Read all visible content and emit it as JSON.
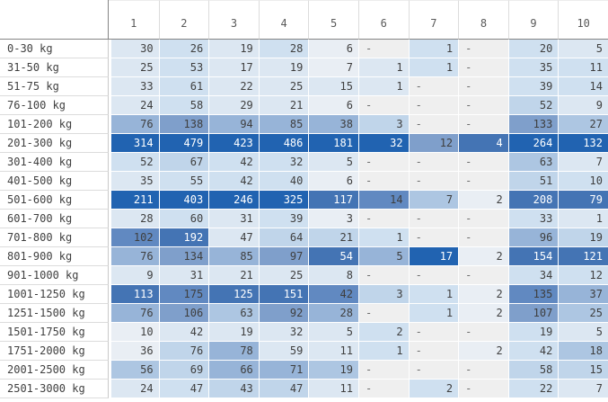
{
  "chart_data": {
    "type": "heatmap",
    "title": "",
    "legend": "none",
    "columns": [
      "1",
      "2",
      "3",
      "4",
      "5",
      "6",
      "7",
      "8",
      "9",
      "10"
    ],
    "row_categories": [
      "0-30 kg",
      "31-50 kg",
      "51-75 kg",
      "76-100 kg",
      "101-200 kg",
      "201-300 kg",
      "301-400 kg",
      "401-500 kg",
      "501-600 kg",
      "601-700 kg",
      "701-800 kg",
      "801-900 kg",
      "901-1000 kg",
      "1001-1250 kg",
      "1251-1500 kg",
      "1501-1750 kg",
      "1751-2000 kg",
      "2001-2500 kg",
      "2501-3000 kg"
    ],
    "values": [
      [
        30,
        26,
        19,
        28,
        6,
        null,
        1,
        null,
        20,
        5
      ],
      [
        25,
        53,
        17,
        19,
        7,
        1,
        1,
        null,
        35,
        11
      ],
      [
        33,
        61,
        22,
        25,
        15,
        1,
        null,
        null,
        39,
        14
      ],
      [
        24,
        58,
        29,
        21,
        6,
        null,
        null,
        null,
        52,
        9
      ],
      [
        76,
        138,
        94,
        85,
        38,
        3,
        null,
        null,
        133,
        27
      ],
      [
        314,
        479,
        423,
        486,
        181,
        32,
        12,
        4,
        264,
        132
      ],
      [
        52,
        67,
        42,
        32,
        5,
        null,
        null,
        null,
        63,
        7
      ],
      [
        35,
        55,
        42,
        40,
        6,
        null,
        null,
        null,
        51,
        10
      ],
      [
        211,
        403,
        246,
        325,
        117,
        14,
        7,
        2,
        208,
        79
      ],
      [
        28,
        60,
        31,
        39,
        3,
        null,
        null,
        null,
        33,
        1
      ],
      [
        102,
        192,
        47,
        64,
        21,
        1,
        null,
        null,
        96,
        19
      ],
      [
        76,
        134,
        85,
        97,
        54,
        5,
        17,
        2,
        154,
        121
      ],
      [
        9,
        31,
        21,
        25,
        8,
        null,
        null,
        null,
        34,
        12
      ],
      [
        113,
        175,
        125,
        151,
        42,
        3,
        1,
        2,
        135,
        37
      ],
      [
        76,
        106,
        63,
        92,
        28,
        null,
        1,
        2,
        107,
        25
      ],
      [
        10,
        42,
        19,
        32,
        5,
        2,
        null,
        null,
        19,
        5
      ],
      [
        36,
        76,
        78,
        59,
        11,
        1,
        null,
        2,
        42,
        18
      ],
      [
        56,
        69,
        66,
        71,
        19,
        null,
        null,
        null,
        58,
        15
      ],
      [
        24,
        47,
        43,
        47,
        11,
        null,
        2,
        null,
        22,
        7
      ]
    ],
    "shading_levels": [
      [
        2,
        3,
        2,
        3,
        1,
        0,
        3,
        0,
        3,
        2
      ],
      [
        2,
        3,
        2,
        2,
        1,
        2,
        3,
        0,
        3,
        3
      ],
      [
        2,
        3,
        2,
        2,
        2,
        2,
        0,
        0,
        3,
        3
      ],
      [
        2,
        3,
        2,
        2,
        1,
        0,
        0,
        0,
        4,
        2
      ],
      [
        6,
        7,
        6,
        6,
        6,
        4,
        0,
        0,
        7,
        5
      ],
      [
        10,
        10,
        10,
        10,
        10,
        10,
        7,
        9,
        10,
        10
      ],
      [
        3,
        4,
        3,
        3,
        2,
        0,
        0,
        0,
        5,
        2
      ],
      [
        2,
        3,
        3,
        3,
        1,
        0,
        0,
        0,
        4,
        3
      ],
      [
        10,
        10,
        10,
        10,
        9,
        8,
        5,
        1,
        9,
        9
      ],
      [
        2,
        3,
        2,
        3,
        1,
        0,
        0,
        0,
        3,
        2
      ],
      [
        8,
        9,
        2,
        4,
        4,
        3,
        0,
        0,
        6,
        4
      ],
      [
        6,
        7,
        6,
        7,
        9,
        6,
        10,
        1,
        9,
        9
      ],
      [
        2,
        2,
        2,
        2,
        2,
        0,
        0,
        0,
        3,
        3
      ],
      [
        9,
        8,
        9,
        9,
        8,
        4,
        3,
        1,
        8,
        6
      ],
      [
        6,
        7,
        5,
        7,
        6,
        0,
        3,
        1,
        7,
        5
      ],
      [
        1,
        2,
        2,
        2,
        2,
        3,
        0,
        0,
        3,
        2
      ],
      [
        1,
        4,
        6,
        2,
        2,
        3,
        0,
        1,
        3,
        5
      ],
      [
        5,
        4,
        6,
        6,
        5,
        0,
        0,
        0,
        4,
        4
      ],
      [
        2,
        3,
        4,
        4,
        2,
        0,
        3,
        0,
        3,
        2
      ]
    ],
    "null_display": "-",
    "palette": [
      "#e9eef4",
      "#dce7f2",
      "#cfe0f0",
      "#c0d5ea",
      "#adc6e2",
      "#97b4d8",
      "#7f9fcb",
      "#6189c1",
      "#4474b4",
      "#2163b1"
    ],
    "null_bg": "#efefef",
    "white_text_min_level": 9
  },
  "table": {
    "corner_label": ""
  },
  "colors": {
    "background": "#ffffff",
    "cell_text_dark": "#3f3f3f",
    "cell_text_light": "#ffffff",
    "null_text": "#6e6e6e",
    "header_text": "#595959",
    "header_border": "#848484",
    "label_column_border": "#c9c9c9",
    "row_separator": "#dcdcdc"
  }
}
